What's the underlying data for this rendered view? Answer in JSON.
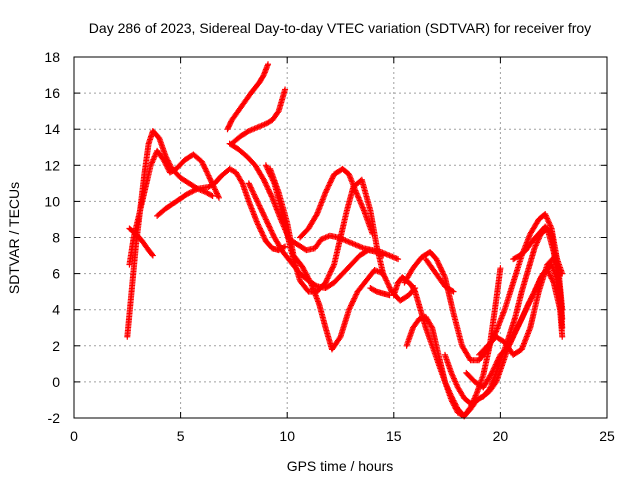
{
  "chart_data": {
    "type": "scatter",
    "title": "Day 286 of 2023, Sidereal Day-to-day VTEC variation (SDTVAR) for receiver froy",
    "xlabel": "GPS time / hours",
    "ylabel": "SDTVAR / TECUs",
    "xlim": [
      0,
      25
    ],
    "ylim": [
      -2,
      18
    ],
    "xticks": [
      0,
      5,
      10,
      15,
      20,
      25
    ],
    "yticks": [
      -2,
      0,
      2,
      4,
      6,
      8,
      10,
      12,
      14,
      16,
      18
    ],
    "grid": true,
    "marker": "+",
    "color": "#ff0000",
    "series": [
      {
        "x": [
          2.5,
          2.7,
          2.9,
          3.1,
          3.3,
          3.5,
          3.7,
          4.0,
          4.3,
          4.6,
          5.0,
          5.4,
          5.8,
          6.2,
          6.5
        ],
        "y": [
          2.5,
          5.0,
          7.5,
          9.5,
          11.5,
          13.2,
          13.9,
          13.5,
          12.5,
          11.8,
          11.3,
          11.0,
          10.7,
          10.5,
          10.3
        ]
      },
      {
        "x": [
          2.6,
          2.8,
          3.0,
          3.3,
          3.6,
          3.9,
          4.2,
          4.5,
          4.8,
          5.2,
          5.6,
          6.0,
          6.4,
          6.8
        ],
        "y": [
          6.5,
          8.0,
          9.0,
          10.5,
          12.0,
          12.8,
          12.3,
          11.6,
          11.8,
          12.3,
          12.6,
          12.2,
          11.2,
          10.2
        ]
      },
      {
        "x": [
          2.6,
          2.9,
          3.2,
          3.5,
          3.7
        ],
        "y": [
          8.5,
          8.2,
          7.8,
          7.3,
          7.0
        ]
      },
      {
        "x": [
          3.9,
          4.3,
          4.8,
          5.3,
          5.8,
          6.3,
          6.6,
          6.9,
          7.3,
          7.6,
          7.9,
          8.2,
          8.6,
          9.0,
          9.3,
          9.6,
          9.9
        ],
        "y": [
          9.2,
          9.6,
          10.0,
          10.4,
          10.7,
          10.8,
          11.0,
          11.4,
          11.8,
          11.6,
          11.0,
          10.0,
          8.8,
          7.8,
          7.4,
          7.3,
          7.5
        ]
      },
      {
        "x": [
          7.2,
          7.4,
          7.7,
          8.0,
          8.3,
          8.5,
          8.7,
          8.9,
          9.1
        ],
        "y": [
          14.0,
          14.5,
          15.0,
          15.5,
          16.0,
          16.3,
          16.6,
          17.0,
          17.6
        ]
      },
      {
        "x": [
          7.4,
          7.8,
          8.2,
          8.6,
          9.0,
          9.3,
          9.6,
          9.9
        ],
        "y": [
          13.2,
          13.6,
          13.9,
          14.1,
          14.3,
          14.5,
          15.0,
          16.2
        ]
      },
      {
        "x": [
          7.3,
          7.7,
          8.1,
          8.5,
          8.9,
          9.3,
          9.7,
          10.1,
          10.5,
          10.9,
          11.3,
          11.6,
          12.0,
          12.4,
          12.8,
          13.2,
          13.6,
          14.0,
          14.4,
          14.8,
          15.2
        ],
        "y": [
          13.2,
          12.9,
          12.5,
          12.0,
          11.2,
          10.2,
          9.0,
          7.9,
          7.6,
          7.3,
          7.4,
          7.9,
          8.1,
          8.0,
          7.8,
          7.6,
          7.4,
          7.3,
          7.2,
          7.0,
          6.8
        ]
      },
      {
        "x": [
          8.2,
          8.6,
          9.0,
          9.4,
          9.8,
          10.2,
          10.6,
          11.0,
          11.4,
          11.8,
          12.2,
          12.6,
          13.0,
          13.4,
          13.8,
          14.2,
          14.5
        ],
        "y": [
          11.0,
          10.0,
          9.0,
          8.0,
          7.2,
          6.6,
          6.0,
          5.6,
          5.3,
          5.2,
          5.5,
          6.0,
          6.5,
          7.0,
          7.3,
          7.2,
          7.0
        ]
      },
      {
        "x": [
          9.0,
          9.4,
          9.8,
          10.2,
          10.6,
          11.0,
          11.4,
          11.8,
          12.2,
          12.5,
          12.8,
          13.1,
          13.5,
          13.9,
          14.2,
          14.5
        ],
        "y": [
          12.0,
          11.0,
          9.2,
          7.2,
          5.6,
          5.0,
          5.0,
          5.5,
          6.5,
          8.0,
          9.5,
          10.8,
          11.2,
          9.5,
          7.5,
          6.0
        ]
      },
      {
        "x": [
          9.2,
          9.6,
          10.0,
          10.3,
          10.7,
          11.1,
          11.5,
          11.8,
          12.1,
          12.5,
          12.9,
          13.3,
          13.7,
          14.1,
          14.5,
          14.9,
          15.3,
          15.7,
          16.0
        ],
        "y": [
          11.8,
          10.5,
          8.8,
          7.0,
          6.4,
          5.5,
          4.3,
          3.0,
          1.8,
          2.5,
          4.0,
          5.0,
          5.6,
          6.2,
          6.0,
          5.0,
          4.5,
          4.8,
          5.2
        ]
      },
      {
        "x": [
          10.6,
          11.0,
          11.4,
          11.8,
          12.2,
          12.6,
          12.9,
          13.2,
          13.6,
          14.0
        ],
        "y": [
          8.0,
          8.5,
          9.3,
          10.5,
          11.5,
          11.8,
          11.5,
          10.6,
          9.5,
          8.2
        ]
      },
      {
        "x": [
          13.9,
          14.2,
          14.5,
          14.8
        ],
        "y": [
          5.2,
          5.0,
          4.9,
          4.8
        ]
      },
      {
        "x": [
          15.0,
          15.2,
          15.4,
          15.6,
          15.8,
          16.0,
          16.2,
          16.5,
          16.8,
          17.1,
          17.4,
          17.7,
          18.0,
          18.3,
          18.6,
          18.9,
          19.2,
          19.5,
          19.8,
          20.0
        ],
        "y": [
          4.8,
          5.5,
          5.8,
          5.6,
          5.4,
          5.0,
          4.2,
          3.0,
          2.0,
          1.0,
          0.0,
          -0.8,
          -1.5,
          -1.9,
          -1.4,
          -0.6,
          0.4,
          2.0,
          4.5,
          6.3
        ]
      },
      {
        "x": [
          15.6,
          15.9,
          16.2,
          16.5,
          16.8,
          17.1,
          17.4,
          17.7,
          18.0,
          18.3,
          18.6,
          18.9,
          19.2,
          19.5,
          19.8,
          20.1,
          20.4,
          20.7,
          21.0,
          21.3,
          21.6,
          21.9,
          22.2,
          22.5,
          22.8
        ],
        "y": [
          2.0,
          3.0,
          3.5,
          3.6,
          3.0,
          1.5,
          0.0,
          -1.0,
          -1.7,
          -1.9,
          -1.5,
          -1.0,
          -0.8,
          -0.5,
          0.0,
          1.0,
          2.0,
          2.8,
          3.5,
          4.3,
          5.0,
          5.8,
          6.2,
          5.5,
          4.0
        ]
      },
      {
        "x": [
          15.5,
          15.9,
          16.3,
          16.7,
          17.0,
          17.4,
          17.8,
          18.2,
          18.6,
          19.0,
          19.4,
          19.8,
          20.2,
          20.6,
          21.0,
          21.4,
          21.8,
          22.1,
          22.4,
          22.7,
          22.9
        ],
        "y": [
          5.5,
          6.3,
          6.9,
          7.2,
          6.8,
          5.8,
          3.8,
          2.0,
          1.2,
          1.2,
          1.8,
          2.8,
          4.0,
          5.5,
          7.0,
          8.2,
          9.0,
          9.3,
          8.5,
          6.5,
          4.0
        ]
      },
      {
        "x": [
          16.5,
          16.8,
          17.1,
          17.4,
          17.8
        ],
        "y": [
          6.8,
          6.3,
          5.8,
          5.3,
          5.0
        ]
      },
      {
        "x": [
          17.4,
          17.7,
          18.0,
          18.3,
          18.6,
          18.9,
          19.2,
          19.5,
          19.8,
          20.1,
          20.4,
          20.7,
          21.0,
          21.3,
          21.6,
          21.9,
          22.2,
          22.5,
          22.8,
          22.9
        ],
        "y": [
          1.5,
          0.5,
          -0.3,
          -0.9,
          -1.2,
          -1.0,
          -0.8,
          -0.4,
          0.5,
          1.5,
          2.5,
          3.6,
          5.0,
          6.2,
          7.4,
          8.2,
          8.5,
          7.2,
          5.0,
          3.0
        ]
      },
      {
        "x": [
          18.4,
          18.8,
          19.2,
          19.6,
          20.0,
          20.4,
          20.8,
          21.2,
          21.6,
          22.0,
          22.4,
          22.7,
          22.9
        ],
        "y": [
          0.5,
          0.0,
          -0.3,
          0.5,
          1.5,
          2.0,
          3.0,
          4.0,
          5.0,
          6.0,
          6.5,
          5.5,
          2.5
        ]
      },
      {
        "x": [
          19.0,
          19.4,
          19.8,
          20.2,
          20.6,
          21.0,
          21.4,
          21.8,
          22.2,
          22.6,
          22.9
        ],
        "y": [
          1.5,
          2.0,
          2.5,
          2.2,
          1.5,
          1.8,
          3.0,
          5.0,
          6.5,
          7.0,
          6.0
        ]
      },
      {
        "x": [
          20.6,
          20.9,
          21.2,
          21.5,
          21.8,
          22.1,
          22.4,
          22.7,
          22.9
        ],
        "y": [
          6.8,
          7.0,
          7.3,
          7.8,
          8.2,
          8.6,
          8.2,
          6.0,
          3.5
        ]
      }
    ]
  }
}
